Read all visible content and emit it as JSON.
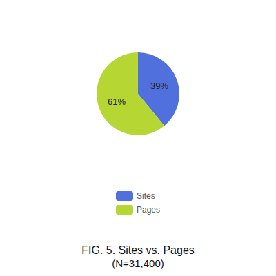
{
  "chart_data": {
    "type": "pie",
    "title": "FIG. 5. Sites vs. Pages",
    "subtitle": "(N=31,400)",
    "categories": [
      "Sites",
      "Pages"
    ],
    "values": [
      39,
      61
    ],
    "value_labels": [
      "39%",
      "61%"
    ],
    "data_labels": true,
    "legend": "bottom"
  }
}
